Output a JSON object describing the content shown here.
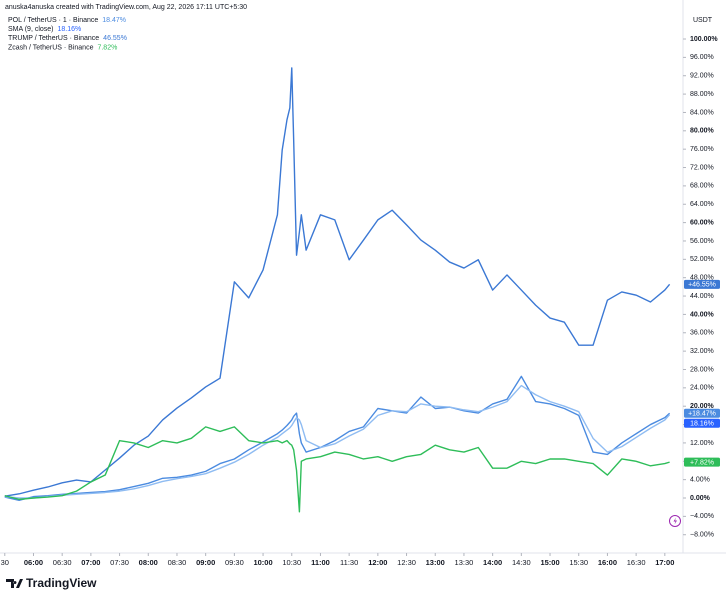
{
  "chart_data": {
    "type": "line",
    "header": "anuska4anuska created with TradingView.com, Aug 22, 2026 17:11 UTC+5:30",
    "y_unit": "USDT",
    "brand": "TradingView",
    "x": [
      "05:30",
      "05:45",
      "06:00",
      "06:15",
      "06:30",
      "06:45",
      "07:00",
      "07:15",
      "07:30",
      "07:45",
      "08:00",
      "08:15",
      "08:30",
      "08:45",
      "09:00",
      "09:15",
      "09:30",
      "09:45",
      "10:00",
      "10:15",
      "10:20",
      "10:25",
      "10:28",
      "10:30",
      "10:32",
      "10:35",
      "10:38",
      "10:40",
      "10:45",
      "11:00",
      "11:15",
      "11:30",
      "11:45",
      "12:00",
      "12:15",
      "12:30",
      "12:45",
      "13:00",
      "13:15",
      "13:30",
      "13:45",
      "14:00",
      "14:15",
      "14:30",
      "14:45",
      "15:00",
      "15:15",
      "15:30",
      "15:45",
      "16:00",
      "16:15",
      "16:30",
      "16:45",
      "17:00",
      "17:05"
    ],
    "xlim": [
      "05:25",
      "17:19"
    ],
    "xticks": [
      {
        "value": "05:30",
        "label": "30"
      },
      "06:00",
      "06:30",
      "07:00",
      "07:30",
      "08:00",
      "08:30",
      "09:00",
      "09:30",
      "10:00",
      "10:30",
      "11:00",
      "11:30",
      "12:00",
      "12:30",
      "13:00",
      "13:30",
      "14:00",
      "14:30",
      "15:00",
      "15:30",
      "16:00",
      "16:30",
      "17:00"
    ],
    "ylim": [
      -9.15,
      108.5
    ],
    "yticks": [
      {
        "value": -8,
        "label": "−8.00%"
      },
      {
        "value": -4,
        "label": "−4.00%"
      },
      {
        "value": 0,
        "label": "0.00%"
      },
      {
        "value": 4,
        "label": "4.00%"
      },
      {
        "value": 8,
        "label": "8.00%"
      },
      {
        "value": 12,
        "label": "12.00%"
      },
      {
        "value": 16,
        "label": "16.00%"
      },
      {
        "value": 20,
        "label": "20.00%"
      },
      {
        "value": 24,
        "label": "24.00%"
      },
      {
        "value": 28,
        "label": "28.00%"
      },
      {
        "value": 32,
        "label": "32.00%"
      },
      {
        "value": 36,
        "label": "36.00%"
      },
      {
        "value": 40,
        "label": "40.00%"
      },
      {
        "value": 44,
        "label": "44.00%"
      },
      {
        "value": 48,
        "label": "48.00%"
      },
      {
        "value": 52,
        "label": "52.00%"
      },
      {
        "value": 56,
        "label": "56.00%"
      },
      {
        "value": 60,
        "label": "60.00%"
      },
      {
        "value": 64,
        "label": "64.00%"
      },
      {
        "value": 68,
        "label": "68.00%"
      },
      {
        "value": 72,
        "label": "72.00%"
      },
      {
        "value": 76,
        "label": "76.00%"
      },
      {
        "value": 80,
        "label": "80.00%"
      },
      {
        "value": 84,
        "label": "84.00%"
      },
      {
        "value": 88,
        "label": "88.00%"
      },
      {
        "value": 92,
        "label": "92.00%"
      },
      {
        "value": 96,
        "label": "96.00%"
      },
      {
        "value": 100,
        "label": "100.00%"
      }
    ],
    "grid": false,
    "series": [
      {
        "name": "POL / TetherUS · 1 · Binance",
        "color": "#4b8be0",
        "legend_value_label": "18.47%",
        "badge_label": "+18.47%",
        "values": [
          0.2,
          -0.5,
          0.3,
          0.5,
          0.8,
          1.0,
          1.2,
          1.4,
          1.8,
          2.5,
          3.2,
          4.3,
          4.5,
          5.0,
          5.8,
          7.5,
          8.5,
          10.5,
          12.2,
          14.0,
          14.8,
          15.8,
          16.5,
          17.0,
          17.8,
          18.5,
          14.0,
          12.0,
          10.0,
          11.0,
          12.5,
          14.5,
          15.5,
          19.5,
          19.0,
          18.5,
          22.0,
          19.5,
          19.8,
          19.0,
          18.5,
          20.5,
          21.5,
          26.5,
          21.0,
          20.5,
          19.5,
          18.0,
          10.0,
          9.5,
          12.0,
          14.0,
          16.0,
          17.5,
          18.47
        ]
      },
      {
        "name": "SMA (9, close)",
        "color": "#2962ff",
        "line_color": "#8fbcf2",
        "legend_value_label": "18.16%",
        "badge_label": "18.16%",
        "values": [
          0.3,
          0.0,
          0.0,
          0.3,
          0.6,
          0.8,
          1.0,
          1.2,
          1.5,
          2.0,
          2.7,
          3.6,
          4.2,
          4.7,
          5.3,
          6.5,
          7.8,
          9.5,
          11.5,
          13.2,
          14.0,
          14.8,
          15.3,
          15.8,
          16.5,
          17.5,
          17.0,
          16.0,
          12.5,
          11.0,
          11.8,
          13.5,
          15.0,
          18.0,
          19.0,
          18.8,
          20.5,
          20.0,
          19.8,
          19.2,
          18.8,
          19.8,
          21.0,
          24.5,
          22.5,
          21.0,
          20.0,
          18.8,
          13.0,
          10.0,
          11.2,
          13.2,
          15.2,
          17.0,
          18.16
        ]
      },
      {
        "name": "TRUMP / TetherUS · Binance",
        "color": "#3b78d4",
        "legend_value_label": "46.55%",
        "badge_label": "+46.55%",
        "values": [
          0.4,
          0.9,
          1.7,
          2.4,
          3.3,
          3.9,
          3.5,
          6.1,
          8.7,
          11.5,
          13.5,
          17.0,
          19.6,
          21.8,
          24.2,
          26.1,
          47.1,
          43.6,
          49.7,
          61.7,
          75.8,
          82.4,
          85.0,
          93.7,
          78.0,
          52.9,
          58.0,
          61.7,
          54.0,
          61.7,
          60.6,
          51.9,
          56.2,
          60.6,
          62.7,
          59.5,
          56.2,
          54.0,
          51.4,
          50.1,
          51.9,
          45.3,
          48.6,
          45.3,
          42.0,
          39.2,
          38.3,
          33.3,
          33.3,
          43.1,
          44.9,
          44.2,
          42.7,
          45.3,
          46.55
        ]
      },
      {
        "name": "Zcash / TetherUS · Binance",
        "color": "#2ebd59",
        "legend_value_label": "7.82%",
        "badge_label": "+7.82%",
        "values": [
          0.5,
          -0.3,
          0.0,
          0.2,
          0.5,
          1.5,
          3.5,
          5.0,
          12.5,
          12.0,
          11.0,
          12.5,
          12.0,
          13.0,
          15.5,
          14.5,
          15.5,
          12.5,
          12.0,
          12.5,
          12.0,
          12.5,
          11.8,
          11.5,
          10.5,
          6.0,
          -3.0,
          8.0,
          8.5,
          9.0,
          10.0,
          9.5,
          8.5,
          9.0,
          8.0,
          9.0,
          9.5,
          11.5,
          10.5,
          10.0,
          11.0,
          6.5,
          6.5,
          8.0,
          7.5,
          8.5,
          8.5,
          8.0,
          7.5,
          5.0,
          8.5,
          8.0,
          7.0,
          7.5,
          7.82
        ]
      }
    ]
  }
}
